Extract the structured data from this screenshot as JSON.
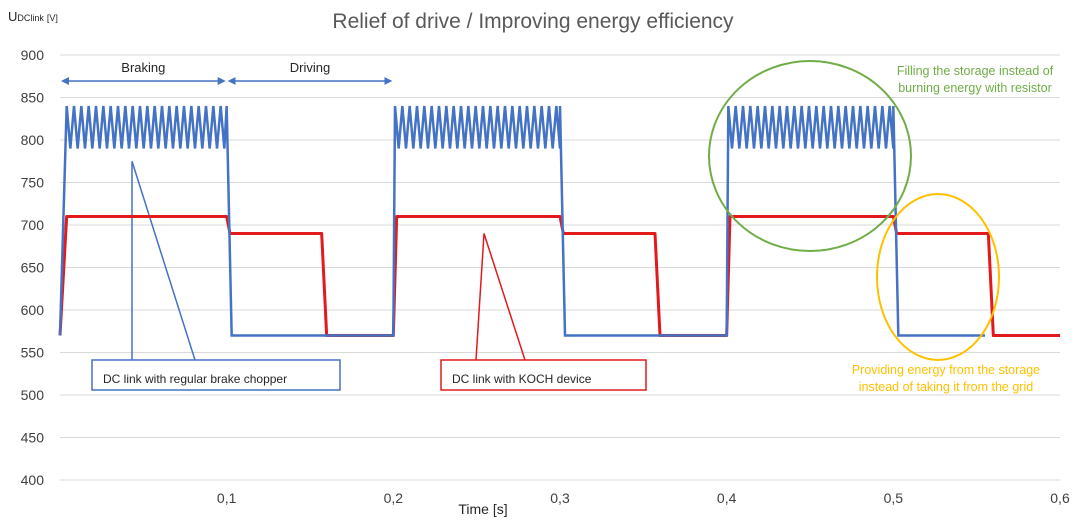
{
  "chart_data": {
    "type": "line",
    "title": "Relief of drive / Improving energy efficiency",
    "ylabel_main": "U",
    "ylabel_sub": "DClink",
    "ylabel_unit": "[V]",
    "xlabel": "Time [s]",
    "ylim": [
      400,
      900
    ],
    "yticks": [
      900,
      850,
      800,
      750,
      700,
      650,
      600,
      550,
      500,
      450,
      400
    ],
    "xlim": [
      0,
      0.6
    ],
    "xticks": [
      {
        "value": 0.1,
        "label": "0,1"
      },
      {
        "value": 0.2,
        "label": "0,2"
      },
      {
        "value": 0.3,
        "label": "0,3"
      },
      {
        "value": 0.4,
        "label": "0,4"
      },
      {
        "value": 0.5,
        "label": "0,5"
      },
      {
        "value": 0.6,
        "label": "0,6"
      }
    ],
    "grid": true,
    "series": [
      {
        "id": "blue",
        "color": "#4472c4",
        "description": "DC link with regular brake chopper",
        "base": [
          [
            0,
            570
          ],
          [
            0.004,
            815
          ],
          [
            0.1,
            815
          ],
          [
            0.103,
            570
          ],
          [
            0.2,
            570
          ],
          [
            0.201,
            815
          ],
          [
            0.3,
            815
          ],
          [
            0.303,
            570
          ],
          [
            0.4,
            570
          ],
          [
            0.401,
            815
          ],
          [
            0.5,
            815
          ],
          [
            0.503,
            570
          ],
          [
            0.555,
            570
          ]
        ],
        "oscillation_intervals": [
          [
            0.004,
            0.1
          ],
          [
            0.201,
            0.3
          ],
          [
            0.401,
            0.5
          ]
        ],
        "oscillation_range": [
          790,
          840
        ],
        "oscillation_period": 0.0044
      },
      {
        "id": "red",
        "color": "#e31a1c",
        "points": [
          [
            0,
            570
          ],
          [
            0.004,
            710
          ],
          [
            0.1,
            710
          ],
          [
            0.102,
            690
          ],
          [
            0.157,
            690
          ],
          [
            0.16,
            570
          ],
          [
            0.2,
            570
          ],
          [
            0.202,
            710
          ],
          [
            0.3,
            710
          ],
          [
            0.302,
            690
          ],
          [
            0.357,
            690
          ],
          [
            0.36,
            570
          ],
          [
            0.4,
            570
          ],
          [
            0.402,
            710
          ],
          [
            0.5,
            710
          ],
          [
            0.502,
            690
          ],
          [
            0.557,
            690
          ],
          [
            0.56,
            570
          ],
          [
            0.6,
            570
          ]
        ]
      }
    ],
    "phases": [
      {
        "label": "Braking",
        "x0": 0.0,
        "x1": 0.1
      },
      {
        "label": "Driving",
        "x0": 0.1,
        "x1": 0.2
      }
    ],
    "callouts": [
      {
        "text": "DC link with regular brake chopper",
        "color": "#4472c4",
        "point": [
          0.045,
          775
        ]
      },
      {
        "text": "DC link with KOCH device",
        "color": "#e31a1c",
        "point": [
          0.25,
          690
        ]
      }
    ],
    "annotations": [
      {
        "lines": [
          "Filling the storage instead of",
          "burning energy with resistor"
        ],
        "color": "#70ad47"
      },
      {
        "lines": [
          "Providing energy from the storage",
          "instead of taking it from the grid"
        ],
        "color": "#ffc000"
      }
    ]
  }
}
